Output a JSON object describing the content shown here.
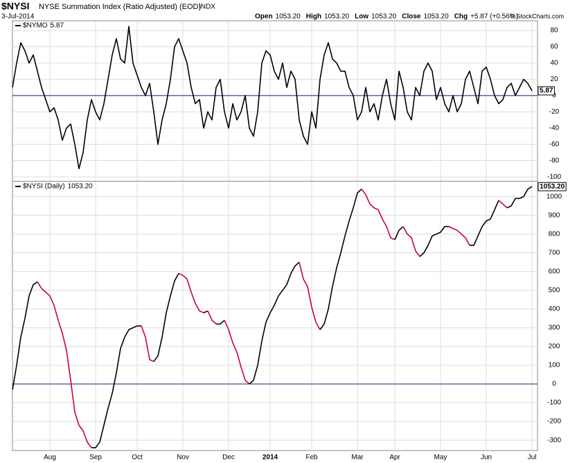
{
  "header": {
    "symbol": "$NYSI",
    "name": "NYSE Summation Index (Ratio Adjusted) (EOD)",
    "exchange": "INDX",
    "date": "3-Jul-2014",
    "quote": [
      {
        "label": "Open",
        "value": "1053.20"
      },
      {
        "label": "High",
        "value": "1053.20"
      },
      {
        "label": "Low",
        "value": "1053.20"
      },
      {
        "label": "Close",
        "value": "1053.20"
      },
      {
        "label": "Chg",
        "value": "+5.87 (+0.56%)"
      }
    ],
    "credit": "© StockCharts.com"
  },
  "chart_data": [
    {
      "type": "line",
      "name": "$NYMO",
      "color": "#000000",
      "zero_color": "#1a1a6e",
      "grid": true,
      "ylim": [
        -105,
        92
      ],
      "yticks": [
        -100,
        -80,
        -60,
        -40,
        -20,
        0,
        20,
        40,
        60,
        80
      ],
      "values": [
        10,
        40,
        65,
        55,
        40,
        50,
        30,
        10,
        -5,
        -20,
        -15,
        -30,
        -55,
        -40,
        -35,
        -60,
        -90,
        -70,
        -30,
        -5,
        -20,
        -30,
        -10,
        20,
        50,
        70,
        45,
        40,
        85,
        40,
        25,
        10,
        0,
        15,
        -20,
        -60,
        -30,
        -10,
        20,
        60,
        70,
        55,
        40,
        10,
        -10,
        -5,
        -40,
        -20,
        -30,
        10,
        20,
        -20,
        -40,
        -10,
        -30,
        -20,
        0,
        -40,
        -50,
        -20,
        40,
        55,
        50,
        30,
        20,
        40,
        10,
        30,
        20,
        -30,
        -50,
        -60,
        -20,
        -40,
        20,
        50,
        65,
        45,
        40,
        30,
        30,
        10,
        0,
        -30,
        -20,
        10,
        -20,
        -10,
        -30,
        0,
        20,
        -10,
        -30,
        30,
        10,
        -20,
        -30,
        10,
        0,
        30,
        40,
        30,
        -5,
        10,
        -10,
        -20,
        0,
        -20,
        -10,
        20,
        30,
        10,
        -10,
        30,
        35,
        20,
        0,
        -10,
        -5,
        10,
        15,
        0,
        10,
        20,
        15,
        5.87
      ]
    },
    {
      "type": "line",
      "name": "$NYSI (Daily)",
      "color": "#000000",
      "falling_color": "#cc0033",
      "zero_color": "#1a1a6e",
      "grid": true,
      "last_label": "1053.20",
      "ylim": [
        -355,
        1080
      ],
      "yticks": [
        -300,
        -200,
        -100,
        0,
        100,
        200,
        300,
        400,
        500,
        600,
        700,
        800,
        900,
        1000
      ],
      "categories": [
        null,
        null,
        null,
        null,
        null,
        null,
        null,
        null,
        null,
        "Aug",
        null,
        null,
        null,
        null,
        null,
        null,
        null,
        null,
        null,
        null,
        "Sep",
        null,
        null,
        null,
        null,
        null,
        null,
        null,
        null,
        null,
        "Oct",
        null,
        null,
        null,
        null,
        null,
        null,
        null,
        null,
        null,
        null,
        "Nov",
        null,
        null,
        null,
        null,
        null,
        null,
        null,
        null,
        null,
        null,
        "Dec",
        null,
        null,
        null,
        null,
        null,
        null,
        null,
        null,
        null,
        "2014",
        null,
        null,
        null,
        null,
        null,
        null,
        null,
        null,
        null,
        "Feb",
        null,
        null,
        null,
        null,
        null,
        null,
        null,
        null,
        null,
        null,
        "Mar",
        null,
        null,
        null,
        null,
        null,
        null,
        null,
        null,
        "Apr",
        null,
        null,
        null,
        null,
        null,
        null,
        null,
        null,
        null,
        null,
        "May",
        null,
        null,
        null,
        null,
        null,
        null,
        null,
        null,
        null,
        null,
        "Jun",
        null,
        null,
        null,
        null,
        null,
        null,
        null,
        null,
        null,
        null,
        "Jul"
      ],
      "values": [
        -30,
        100,
        250,
        350,
        470,
        530,
        545,
        510,
        490,
        470,
        420,
        340,
        270,
        180,
        20,
        -150,
        -220,
        -250,
        -310,
        -340,
        -340,
        -310,
        -220,
        -130,
        -50,
        60,
        190,
        250,
        290,
        300,
        310,
        310,
        250,
        130,
        120,
        150,
        250,
        380,
        470,
        550,
        590,
        580,
        560,
        490,
        430,
        390,
        380,
        390,
        340,
        320,
        320,
        340,
        290,
        220,
        170,
        90,
        20,
        0,
        20,
        100,
        230,
        330,
        380,
        420,
        470,
        500,
        530,
        590,
        630,
        650,
        560,
        520,
        410,
        330,
        290,
        320,
        400,
        520,
        620,
        700,
        790,
        870,
        940,
        1020,
        1040,
        1010,
        960,
        940,
        930,
        880,
        840,
        780,
        770,
        820,
        840,
        800,
        780,
        710,
        680,
        700,
        740,
        790,
        800,
        810,
        840,
        840,
        830,
        820,
        800,
        780,
        740,
        740,
        790,
        840,
        870,
        880,
        930,
        980,
        960,
        940,
        950,
        990,
        990,
        1000,
        1040,
        1053.2
      ]
    }
  ]
}
